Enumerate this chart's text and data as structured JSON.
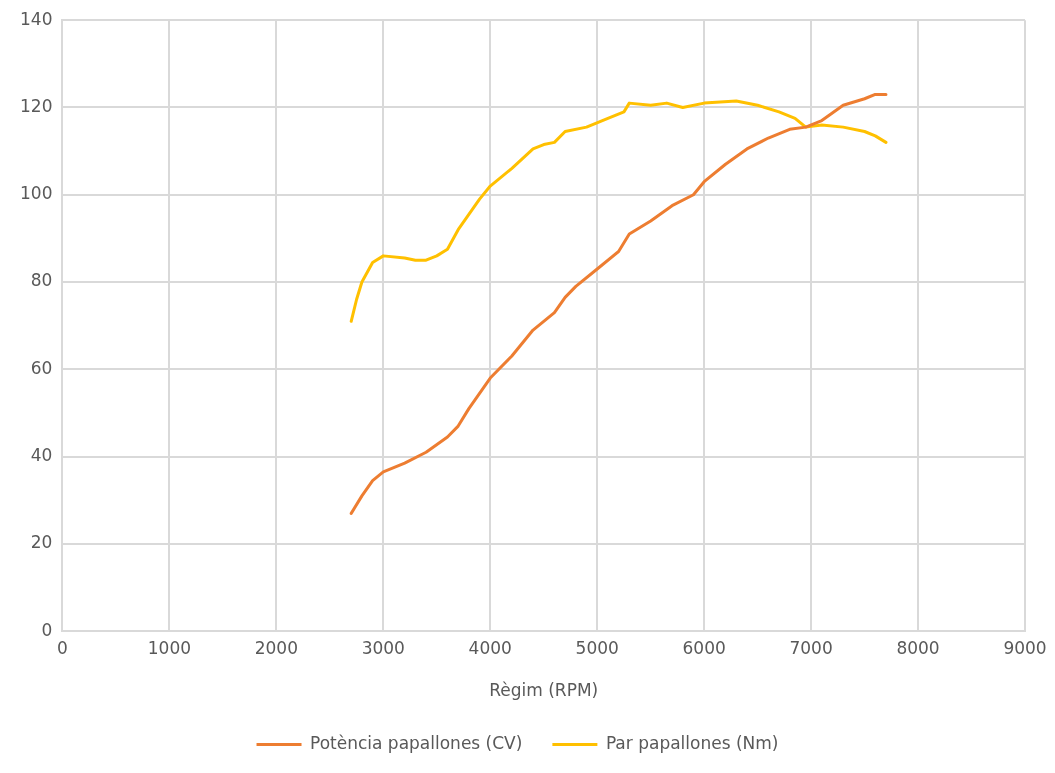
{
  "chart_data": {
    "type": "line",
    "xlabel": "Règim (RPM)",
    "xlim": [
      0,
      9000
    ],
    "xticks": [
      0,
      1000,
      2000,
      3000,
      4000,
      5000,
      6000,
      7000,
      8000,
      9000
    ],
    "ylim": [
      0,
      140
    ],
    "yticks": [
      0,
      20,
      40,
      60,
      80,
      100,
      120,
      140
    ],
    "grid": true,
    "legend": "bottom",
    "marker": "none",
    "line_style": "solid",
    "series": [
      {
        "name": "Potència papallones (CV)",
        "color": "#ed7d31",
        "x": [
          2700,
          2800,
          2900,
          3000,
          3200,
          3400,
          3600,
          3700,
          3800,
          4000,
          4200,
          4400,
          4600,
          4700,
          4800,
          5000,
          5200,
          5300,
          5500,
          5700,
          5900,
          6000,
          6200,
          6400,
          6600,
          6800,
          6950,
          7100,
          7300,
          7500,
          7600,
          7700
        ],
        "values": [
          27,
          31,
          34.5,
          36.5,
          38.5,
          41,
          44.5,
          47,
          51,
          58,
          63,
          69,
          73,
          76.5,
          79,
          83,
          87,
          91,
          94,
          97.5,
          100,
          103,
          107,
          110.5,
          113,
          115,
          115.5,
          117,
          120.5,
          122,
          123,
          123
        ]
      },
      {
        "name": "Par papallones (Nm)",
        "color": "#ffc000",
        "x": [
          2700,
          2750,
          2800,
          2900,
          3000,
          3200,
          3300,
          3400,
          3500,
          3600,
          3700,
          3900,
          4000,
          4200,
          4400,
          4500,
          4600,
          4700,
          4900,
          5100,
          5250,
          5300,
          5500,
          5650,
          5800,
          6000,
          6300,
          6500,
          6700,
          6850,
          6950,
          7100,
          7300,
          7500,
          7600,
          7700
        ],
        "values": [
          71,
          76,
          80,
          84.5,
          86,
          85.5,
          85,
          85,
          86,
          87.5,
          92,
          99,
          102,
          106,
          110.5,
          111.5,
          112,
          114.5,
          115.5,
          117.5,
          119,
          121,
          120.5,
          121,
          120,
          121,
          121.5,
          120.5,
          119,
          117.5,
          115.5,
          116,
          115.5,
          114.5,
          113.5,
          112
        ]
      }
    ]
  }
}
